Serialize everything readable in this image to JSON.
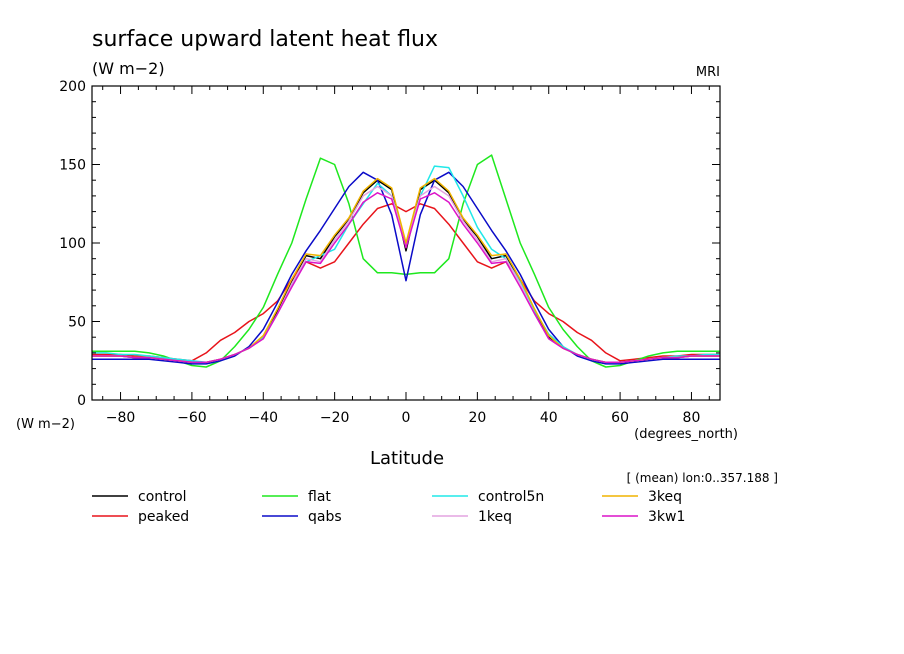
{
  "chart_data": {
    "type": "line",
    "title": "surface upward latent heat flux",
    "units_label": "(W m−2)",
    "ylabel": "(W m−2)",
    "xlabel": "Latitude",
    "x_units": "(degrees_north)",
    "model_label": "MRI",
    "subset_note": "[ (mean) lon:0..357.188 ]",
    "xlim": [
      -88,
      88
    ],
    "ylim": [
      0,
      200
    ],
    "x_ticks": [
      -80,
      -60,
      -40,
      -20,
      0,
      20,
      40,
      60,
      80
    ],
    "y_ticks": [
      0,
      50,
      100,
      150,
      200
    ],
    "grid": false,
    "legend_position": "bottom",
    "x": [
      -88,
      -84,
      -80,
      -76,
      -72,
      -68,
      -64,
      -60,
      -56,
      -52,
      -48,
      -44,
      -40,
      -36,
      -32,
      -28,
      -24,
      -20,
      -16,
      -12,
      -8,
      -4,
      0,
      4,
      8,
      12,
      16,
      20,
      24,
      28,
      32,
      36,
      40,
      44,
      48,
      52,
      56,
      60,
      64,
      68,
      72,
      76,
      80,
      84,
      88
    ],
    "series": [
      {
        "name": "control",
        "color": "#000000",
        "values": [
          28,
          28,
          28,
          27,
          27,
          26,
          25,
          24,
          24,
          26,
          29,
          33,
          40,
          57,
          76,
          92,
          90,
          104,
          115,
          132,
          140,
          134,
          95,
          134,
          140,
          132,
          115,
          104,
          90,
          92,
          76,
          57,
          40,
          33,
          29,
          26,
          24,
          24,
          25,
          26,
          27,
          27,
          28,
          28,
          28
        ]
      },
      {
        "name": "peaked",
        "color": "#e8141b",
        "values": [
          29,
          29,
          29,
          28,
          28,
          27,
          26,
          25,
          30,
          38,
          43,
          50,
          55,
          63,
          77,
          88,
          84,
          88,
          100,
          112,
          122,
          125,
          120,
          125,
          122,
          112,
          100,
          88,
          84,
          88,
          77,
          63,
          55,
          50,
          43,
          38,
          30,
          25,
          26,
          27,
          28,
          28,
          29,
          29,
          29
        ]
      },
      {
        "name": "flat",
        "color": "#1ee81e",
        "values": [
          31,
          31,
          31,
          31,
          30,
          28,
          25,
          22,
          21,
          25,
          34,
          45,
          59,
          80,
          100,
          128,
          154,
          150,
          125,
          90,
          81,
          81,
          80,
          81,
          81,
          90,
          125,
          150,
          156,
          128,
          100,
          80,
          59,
          45,
          34,
          25,
          21,
          22,
          25,
          28,
          30,
          31,
          31,
          31,
          31
        ]
      },
      {
        "name": "qabs",
        "color": "#0b0bc8",
        "values": [
          26,
          26,
          26,
          26,
          26,
          25,
          24,
          23,
          23,
          25,
          28,
          34,
          45,
          62,
          80,
          95,
          108,
          122,
          136,
          145,
          140,
          118,
          76,
          118,
          140,
          145,
          136,
          122,
          108,
          95,
          80,
          62,
          45,
          34,
          28,
          25,
          23,
          23,
          24,
          25,
          26,
          26,
          26,
          26,
          26
        ]
      },
      {
        "name": "control5n",
        "color": "#20e8e8",
        "values": [
          30,
          30,
          29,
          29,
          28,
          27,
          26,
          25,
          24,
          26,
          29,
          33,
          40,
          55,
          73,
          88,
          92,
          96,
          112,
          125,
          138,
          130,
          100,
          130,
          149,
          148,
          130,
          110,
          96,
          90,
          75,
          57,
          42,
          34,
          29,
          26,
          24,
          24,
          25,
          26,
          27,
          28,
          28,
          29,
          29
        ]
      },
      {
        "name": "1keq",
        "color": "#e4a3e1",
        "values": [
          28,
          28,
          28,
          27,
          27,
          26,
          25,
          24,
          24,
          26,
          29,
          33,
          39,
          55,
          74,
          90,
          88,
          102,
          114,
          130,
          136,
          130,
          98,
          130,
          136,
          130,
          114,
          102,
          88,
          90,
          74,
          55,
          39,
          33,
          29,
          26,
          24,
          24,
          25,
          26,
          27,
          27,
          28,
          28,
          28
        ]
      },
      {
        "name": "3keq",
        "color": "#f0b400",
        "values": [
          28,
          28,
          28,
          27,
          27,
          26,
          25,
          24,
          24,
          26,
          29,
          33,
          41,
          58,
          77,
          93,
          92,
          105,
          116,
          133,
          141,
          135,
          100,
          135,
          141,
          133,
          116,
          105,
          92,
          93,
          77,
          58,
          41,
          33,
          29,
          26,
          24,
          24,
          25,
          26,
          27,
          27,
          28,
          28,
          28
        ]
      },
      {
        "name": "3kw1",
        "color": "#dc14c8",
        "values": [
          28,
          28,
          28,
          27,
          27,
          26,
          25,
          24,
          24,
          26,
          29,
          33,
          39,
          55,
          72,
          88,
          87,
          100,
          112,
          126,
          132,
          128,
          97,
          128,
          132,
          126,
          112,
          100,
          87,
          88,
          72,
          55,
          39,
          33,
          29,
          26,
          24,
          24,
          25,
          26,
          27,
          27,
          28,
          28,
          28
        ]
      }
    ]
  }
}
